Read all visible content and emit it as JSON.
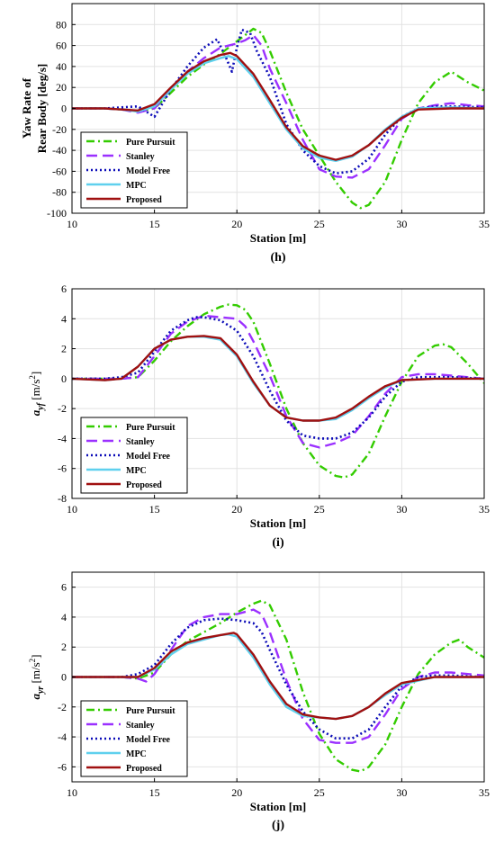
{
  "chart_data": [
    {
      "type": "line",
      "panel": "(h)",
      "ylabel_lines": [
        "Yaw Rate of",
        "Rear Body [deg/s]"
      ],
      "xlabel": "Station [m]",
      "xlim": [
        10,
        35
      ],
      "ylim": [
        -100,
        100
      ],
      "xticks": [
        10,
        15,
        20,
        25,
        30,
        35
      ],
      "yticks": [
        -100,
        -80,
        -60,
        -40,
        -20,
        0,
        20,
        40,
        60,
        80
      ],
      "grid": true,
      "legend_position": "bottom-left",
      "series": [
        {
          "name": "Pure Pursuit",
          "x": [
            10,
            12,
            13,
            14,
            15,
            16,
            17,
            18,
            19,
            20,
            20.5,
            21,
            21.5,
            22,
            23,
            24,
            25,
            26,
            27,
            27.5,
            28,
            29,
            30,
            31,
            32,
            33,
            34,
            35
          ],
          "y": [
            0,
            0,
            -1,
            -3,
            0,
            15,
            30,
            42,
            52,
            64,
            70,
            76,
            72,
            55,
            15,
            -20,
            -45,
            -70,
            -90,
            -95,
            -92,
            -70,
            -30,
            5,
            25,
            35,
            25,
            17
          ]
        },
        {
          "name": "Stanley",
          "x": [
            10,
            12,
            13,
            14,
            15,
            16,
            17,
            18,
            19,
            20,
            20.5,
            21,
            21.5,
            22,
            23,
            24,
            25,
            26,
            27,
            28,
            29,
            30,
            31,
            32,
            33,
            34,
            35
          ],
          "y": [
            0,
            0,
            -1,
            -4,
            0,
            18,
            35,
            48,
            58,
            62,
            65,
            70,
            60,
            38,
            5,
            -30,
            -58,
            -65,
            -66,
            -58,
            -35,
            -10,
            0,
            3,
            5,
            3,
            2
          ]
        },
        {
          "name": "Model Free",
          "x": [
            10,
            12,
            13,
            14,
            14.5,
            15,
            16,
            17,
            18,
            18.8,
            19.3,
            19.7,
            20,
            20.3,
            20.8,
            21.2,
            22,
            23,
            24,
            25,
            26,
            27,
            28,
            29,
            30,
            31,
            32,
            33,
            35
          ],
          "y": [
            0,
            0,
            1,
            2,
            -3,
            -8,
            18,
            40,
            58,
            66,
            50,
            35,
            58,
            75,
            72,
            55,
            30,
            -15,
            -40,
            -55,
            -62,
            -60,
            -48,
            -25,
            -8,
            0,
            2,
            2,
            1
          ]
        },
        {
          "name": "MPC",
          "x": [
            10,
            12,
            13,
            14,
            15,
            16,
            17,
            18,
            19,
            19.5,
            20,
            21,
            22,
            23,
            24,
            25,
            26,
            27,
            28,
            29,
            30,
            31,
            33,
            35
          ],
          "y": [
            0,
            0,
            -1,
            -3,
            2,
            18,
            33,
            43,
            48,
            50,
            47,
            30,
            5,
            -20,
            -38,
            -47,
            -50,
            -46,
            -35,
            -20,
            -8,
            0,
            1,
            0
          ]
        },
        {
          "name": "Proposed",
          "x": [
            10,
            12,
            13,
            14,
            15,
            16,
            17,
            18,
            19,
            19.6,
            20,
            21,
            22,
            23,
            24,
            25,
            26,
            27,
            28,
            29,
            30,
            31,
            33,
            35
          ],
          "y": [
            0,
            0,
            -1,
            -2,
            4,
            20,
            35,
            45,
            51,
            53,
            50,
            33,
            8,
            -18,
            -36,
            -45,
            -49,
            -45,
            -35,
            -21,
            -9,
            -1,
            0,
            0
          ]
        }
      ]
    },
    {
      "type": "line",
      "panel": "(i)",
      "ylabel": "a_yf [m/s^2]",
      "ylabel_main": "a",
      "ylabel_sub": "yf",
      "ylabel_unit": " [m/s",
      "ylabel_sup": "2",
      "ylabel_close": "]",
      "xlabel": "Station [m]",
      "xlim": [
        10,
        35
      ],
      "ylim": [
        -8,
        6
      ],
      "xticks": [
        10,
        15,
        20,
        25,
        30,
        35
      ],
      "yticks": [
        -8,
        -6,
        -4,
        -2,
        0,
        2,
        4,
        6
      ],
      "grid": true,
      "legend_position": "bottom-left",
      "series": [
        {
          "name": "Pure Pursuit",
          "x": [
            10,
            12,
            13,
            14,
            15,
            16,
            17,
            18,
            19,
            19.5,
            20,
            20.5,
            21,
            22,
            23,
            24,
            25,
            26,
            26.5,
            27,
            28,
            29,
            30,
            31,
            32,
            32.5,
            33,
            34,
            35
          ],
          "y": [
            0,
            0,
            0,
            0.1,
            1.2,
            2.5,
            3.5,
            4.3,
            4.8,
            4.95,
            4.9,
            4.6,
            3.8,
            1.0,
            -2.0,
            -4.3,
            -5.8,
            -6.5,
            -6.6,
            -6.4,
            -5.0,
            -2.5,
            -0.2,
            1.5,
            2.2,
            2.3,
            2.1,
            1.0,
            -0.3
          ]
        },
        {
          "name": "Stanley",
          "x": [
            10,
            12,
            13,
            14,
            15,
            16,
            17,
            18,
            19,
            20,
            20.5,
            21,
            22,
            23,
            24,
            25,
            26,
            27,
            28,
            29,
            30,
            31,
            32,
            33,
            35
          ],
          "y": [
            0,
            0,
            0,
            0.1,
            1.5,
            3.0,
            3.8,
            4.2,
            4.1,
            4.0,
            3.5,
            2.5,
            0.2,
            -2.5,
            -4.3,
            -4.6,
            -4.3,
            -3.8,
            -2.5,
            -1.0,
            0.1,
            0.3,
            0.3,
            0.2,
            0
          ]
        },
        {
          "name": "Model Free",
          "x": [
            10,
            12,
            13,
            14,
            15,
            16,
            17,
            17.5,
            18,
            19,
            20,
            21,
            22,
            23,
            24,
            25,
            26,
            27,
            28,
            29,
            30,
            31,
            32,
            33,
            35
          ],
          "y": [
            0,
            0,
            0.1,
            0.4,
            1.8,
            3.2,
            3.9,
            4.1,
            4.1,
            3.9,
            3.2,
            1.5,
            -0.8,
            -2.8,
            -3.8,
            -4.0,
            -4.0,
            -3.6,
            -2.6,
            -1.2,
            -0.2,
            0.1,
            0.1,
            0.1,
            0
          ]
        },
        {
          "name": "MPC",
          "x": [
            10,
            12,
            13,
            14,
            15,
            16,
            17,
            18,
            19,
            20,
            21,
            22,
            23,
            24,
            25,
            26,
            27,
            28,
            29,
            30,
            32,
            35
          ],
          "y": [
            0,
            -0.1,
            0,
            0.8,
            2.0,
            2.6,
            2.8,
            2.8,
            2.6,
            1.5,
            -0.3,
            -1.8,
            -2.6,
            -2.8,
            -2.8,
            -2.7,
            -2.1,
            -1.3,
            -0.6,
            -0.1,
            0,
            0
          ]
        },
        {
          "name": "Proposed",
          "x": [
            10,
            12,
            13,
            14,
            15,
            16,
            17,
            18,
            19,
            20,
            21,
            22,
            23,
            24,
            25,
            26,
            27,
            28,
            29,
            30,
            32,
            35
          ],
          "y": [
            0,
            -0.1,
            0,
            0.8,
            2.0,
            2.6,
            2.8,
            2.85,
            2.7,
            1.6,
            -0.2,
            -1.8,
            -2.6,
            -2.8,
            -2.8,
            -2.6,
            -2.0,
            -1.2,
            -0.5,
            -0.1,
            0,
            0
          ]
        }
      ]
    },
    {
      "type": "line",
      "panel": "(j)",
      "ylabel": "a_yr [m/s^2]",
      "ylabel_main": "a",
      "ylabel_sub": "yr",
      "ylabel_unit": " [m/s",
      "ylabel_sup": "2",
      "ylabel_close": "]",
      "xlabel": "Station [m]",
      "xlim": [
        10,
        35
      ],
      "ylim": [
        -7,
        7
      ],
      "xticks": [
        10,
        15,
        20,
        25,
        30,
        35
      ],
      "yticks": [
        -6,
        -4,
        -2,
        0,
        2,
        4,
        6
      ],
      "grid": true,
      "legend_position": "bottom-left",
      "series": [
        {
          "name": "Pure Pursuit",
          "x": [
            10,
            12,
            13,
            14,
            15,
            16,
            17,
            18,
            19,
            20,
            21,
            21.5,
            22,
            23,
            24,
            25,
            26,
            27,
            27.5,
            28,
            29,
            30,
            31,
            32,
            33,
            33.5,
            34,
            35
          ],
          "y": [
            0,
            0,
            0,
            -0.1,
            0.3,
            1.5,
            2.4,
            3.0,
            3.6,
            4.3,
            4.9,
            5.1,
            4.8,
            2.5,
            -1.0,
            -3.8,
            -5.5,
            -6.2,
            -6.3,
            -6.0,
            -4.5,
            -2.0,
            0.2,
            1.5,
            2.3,
            2.5,
            2.0,
            1.3
          ]
        },
        {
          "name": "Stanley",
          "x": [
            10,
            12,
            13,
            14,
            14.5,
            15,
            16,
            17,
            18,
            19,
            20,
            21,
            21.5,
            22,
            23,
            24,
            25,
            26,
            27,
            28,
            29,
            30,
            31,
            32,
            33,
            35
          ],
          "y": [
            0,
            0,
            0,
            -0.1,
            -0.3,
            0.2,
            1.8,
            3.4,
            4.0,
            4.2,
            4.2,
            4.5,
            4.2,
            3.0,
            -0.2,
            -2.8,
            -4.2,
            -4.4,
            -4.4,
            -4.0,
            -2.5,
            -0.8,
            0,
            0.3,
            0.3,
            0.1
          ]
        },
        {
          "name": "Model Free",
          "x": [
            10,
            12,
            13,
            14,
            15,
            16,
            17,
            18,
            19,
            20,
            21,
            21.5,
            22,
            23,
            24,
            25,
            26,
            27,
            28,
            29,
            30,
            31,
            32,
            33,
            35
          ],
          "y": [
            0,
            0,
            0,
            0.2,
            0.8,
            2.2,
            3.3,
            3.8,
            3.9,
            3.8,
            3.6,
            3.0,
            1.8,
            -0.5,
            -2.3,
            -3.5,
            -4.1,
            -4.1,
            -3.5,
            -2.0,
            -0.6,
            0,
            0.1,
            0.1,
            0
          ]
        },
        {
          "name": "MPC",
          "x": [
            10,
            12,
            13,
            14,
            15,
            16,
            17,
            18,
            19,
            19.5,
            20,
            21,
            22,
            23,
            24,
            25,
            26,
            27,
            28,
            29,
            30,
            32,
            35
          ],
          "y": [
            0,
            0,
            0,
            0,
            0.5,
            1.5,
            2.2,
            2.5,
            2.8,
            2.85,
            2.7,
            1.3,
            -0.5,
            -2.0,
            -2.6,
            -2.7,
            -2.8,
            -2.6,
            -2.0,
            -1.2,
            -0.5,
            0,
            0
          ]
        },
        {
          "name": "Proposed",
          "x": [
            10,
            12,
            13,
            14,
            15,
            16,
            17,
            18,
            19,
            19.8,
            20,
            21,
            22,
            23,
            24,
            25,
            26,
            27,
            28,
            29,
            30,
            32,
            35
          ],
          "y": [
            0,
            0,
            0,
            0,
            0.6,
            1.7,
            2.3,
            2.6,
            2.8,
            2.95,
            2.85,
            1.5,
            -0.3,
            -1.8,
            -2.5,
            -2.7,
            -2.8,
            -2.6,
            -2.0,
            -1.1,
            -0.4,
            0,
            0
          ]
        }
      ]
    }
  ],
  "styles": {
    "Pure Pursuit": {
      "color": "#33cc00",
      "dash": "9,4,2,4",
      "width": 2.4
    },
    "Stanley": {
      "color": "#9b30ff",
      "dash": "12,6",
      "width": 2.4
    },
    "Model Free": {
      "color": "#0b0bb8",
      "dash": "2,3",
      "width": 2.6
    },
    "MPC": {
      "color": "#5fd0ee",
      "dash": "",
      "width": 2.4
    },
    "Proposed": {
      "color": "#a01010",
      "dash": "",
      "width": 2.4
    }
  }
}
